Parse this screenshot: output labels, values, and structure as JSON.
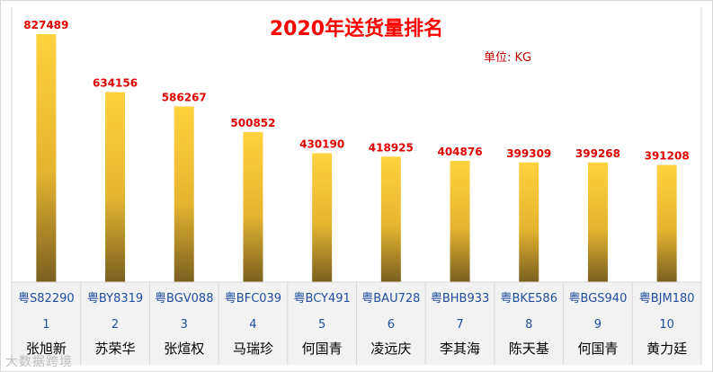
{
  "chart_data": {
    "type": "bar",
    "title": "2020年送货量排名",
    "unit_label": "单位: KG",
    "ranks": [
      "1",
      "2",
      "3",
      "4",
      "5",
      "6",
      "7",
      "8",
      "9",
      "10"
    ],
    "plates": [
      "粤S82290",
      "粤BY8319",
      "粤BGV088",
      "粤BFC039",
      "粤BCY491",
      "粤BAU728",
      "粤BHB933",
      "粤BKE586",
      "粤BGS940",
      "粤BJM180"
    ],
    "names": [
      "张旭新",
      "苏荣华",
      "张煊权",
      "马瑞珍",
      "何国青",
      "凌远庆",
      "李其海",
      "陈天基",
      "何国青",
      "黄力廷"
    ],
    "values": [
      827489,
      634156,
      586267,
      500852,
      430190,
      418925,
      404876,
      399309,
      399268,
      391208
    ],
    "ylim": [
      0,
      900000
    ],
    "grid": false,
    "legend": "none",
    "colors": {
      "bar_top": "#ffd23f",
      "bar_mid": "#f2c030",
      "bar_bottom": "#7a6020",
      "value_label": "#e00000",
      "category_text": "#1f4e9d",
      "name_text": "#000000",
      "title": "#ff0000"
    }
  },
  "watermark": "大数据跨境"
}
